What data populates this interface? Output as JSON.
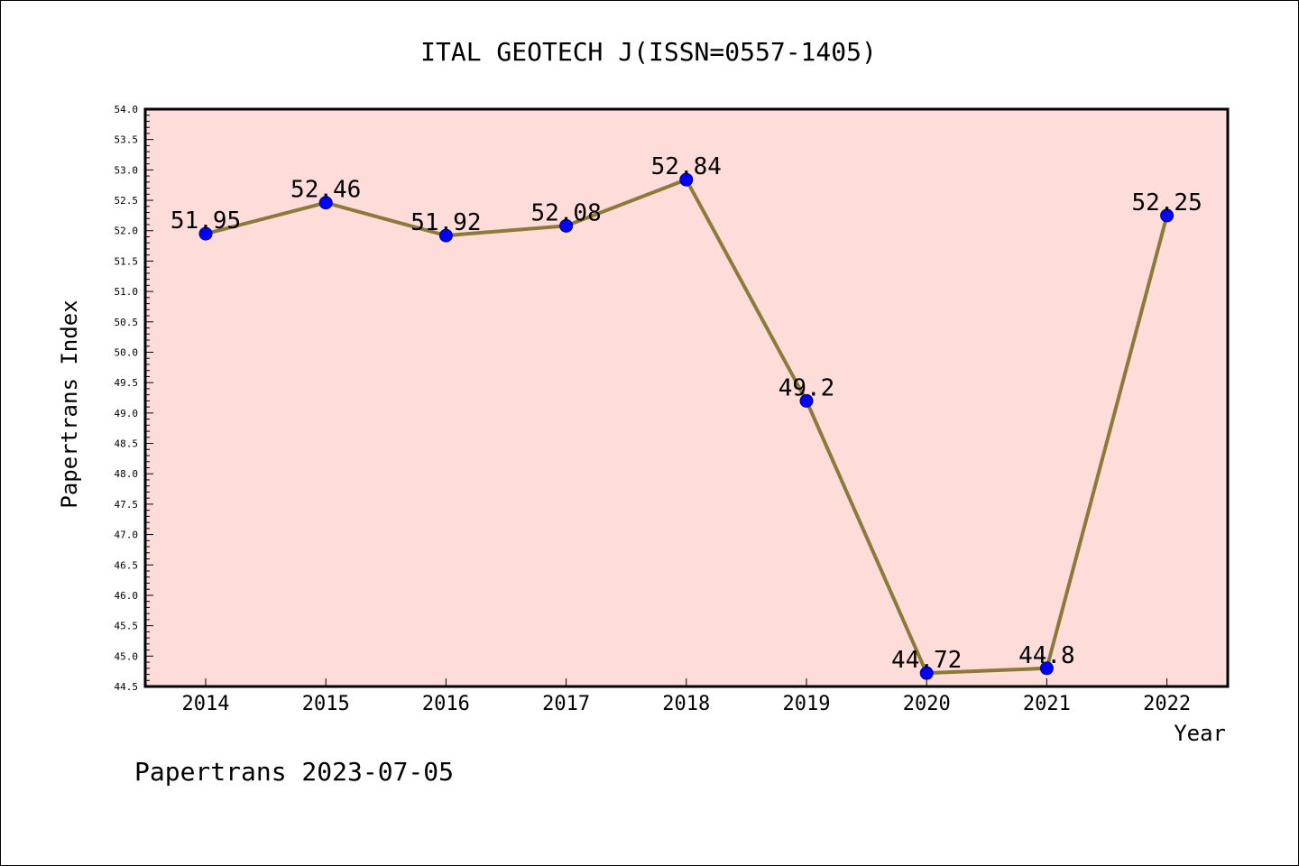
{
  "chart_data": {
    "type": "line",
    "title": "ITAL GEOTECH J(ISSN=0557-1405)",
    "xlabel": "Year",
    "ylabel": "Papertrans Index",
    "footer": "Papertrans 2023-07-05",
    "categories": [
      "2014",
      "2015",
      "2016",
      "2017",
      "2018",
      "2019",
      "2020",
      "2021",
      "2022"
    ],
    "series": [
      {
        "values": [
          51.95,
          52.46,
          51.92,
          52.08,
          52.84,
          49.2,
          44.72,
          44.8,
          52.25
        ],
        "data_labels": [
          "51.95",
          "52.46",
          "51.92",
          "52.08",
          "52.84",
          "49.2",
          "44.72",
          "44.8",
          "52.25"
        ],
        "line_color": "#8B7A3A",
        "marker_color": "#0000FF"
      }
    ],
    "ylim": [
      44.5,
      54.0
    ],
    "y_major_step": 0.5,
    "y_minor_step": 0.1,
    "y_tick_labels": [
      "44.5",
      "45.0",
      "45.5",
      "46.0",
      "46.5",
      "47.0",
      "47.5",
      "48.0",
      "48.5",
      "49.0",
      "49.5",
      "50.0",
      "50.5",
      "51.0",
      "51.5",
      "52.0",
      "52.5",
      "53.0",
      "53.5",
      "54.0"
    ],
    "plot_background": "#FDDCDA",
    "grid": false,
    "legend": "none"
  }
}
